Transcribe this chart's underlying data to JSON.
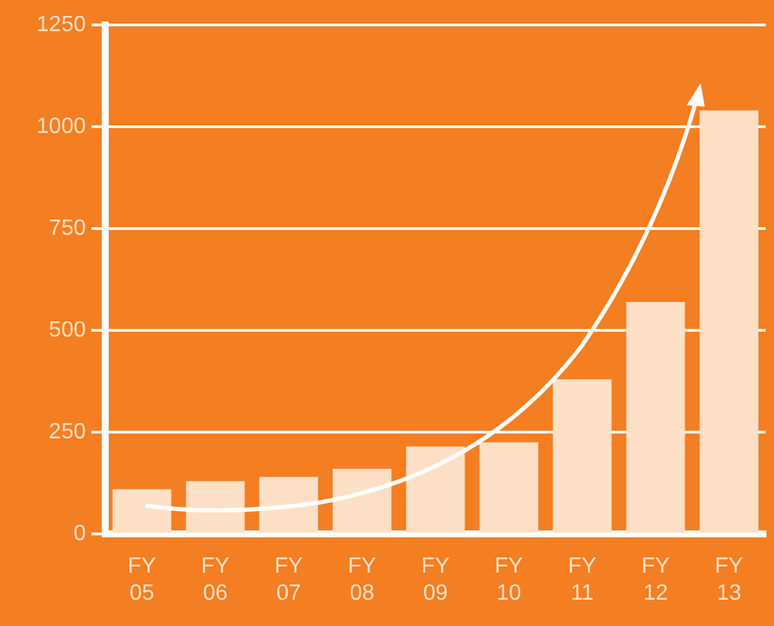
{
  "chart_data": {
    "type": "bar",
    "categories": [
      "FY 05",
      "FY 06",
      "FY 07",
      "FY 08",
      "FY 09",
      "FY 10",
      "FY 11",
      "FY 12",
      "FY 13"
    ],
    "values": [
      110,
      130,
      140,
      160,
      215,
      225,
      380,
      570,
      1040
    ],
    "color": "#fde0c5",
    "ylim": [
      0,
      1250
    ],
    "yticks": [
      0,
      250,
      500,
      750,
      1000,
      1250
    ],
    "grid": "y",
    "legend": false
  }
}
